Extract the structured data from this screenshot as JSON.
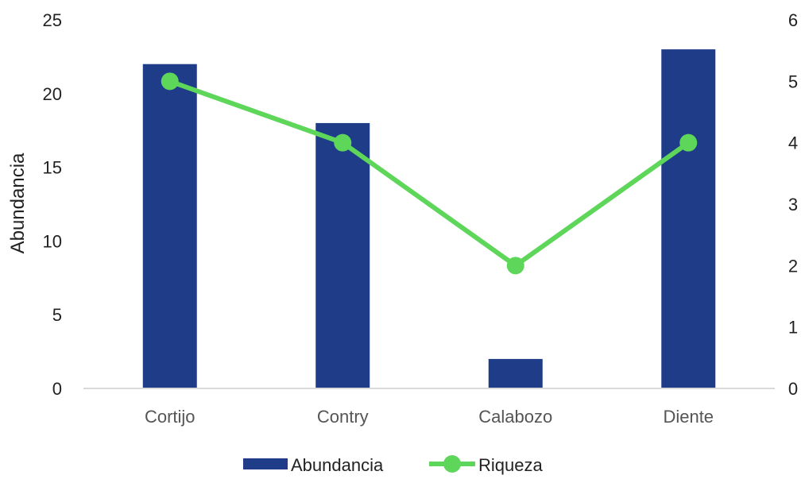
{
  "chart_data": {
    "type": "bar",
    "categories": [
      "Cortijo",
      "Contry",
      "Calabozo",
      "Diente"
    ],
    "series": [
      {
        "name": "Abundancia",
        "type": "bar",
        "axis": "left",
        "values": [
          22,
          18,
          2,
          23
        ]
      },
      {
        "name": "Riqueza",
        "type": "line",
        "axis": "right",
        "values": [
          5,
          4,
          2,
          4
        ]
      }
    ],
    "ylabel": "Abundancia",
    "ylim": [
      0,
      25
    ],
    "y_ticks": [
      0,
      5,
      10,
      15,
      20,
      25
    ],
    "y2lim": [
      0,
      6
    ],
    "y2_ticks": [
      0,
      1,
      2,
      3,
      4,
      5,
      6
    ],
    "grid": false,
    "legend_position": "bottom",
    "colors": {
      "bar": "#1f3c88",
      "line": "#5ed65a",
      "axis": "#d9d9d9"
    }
  }
}
